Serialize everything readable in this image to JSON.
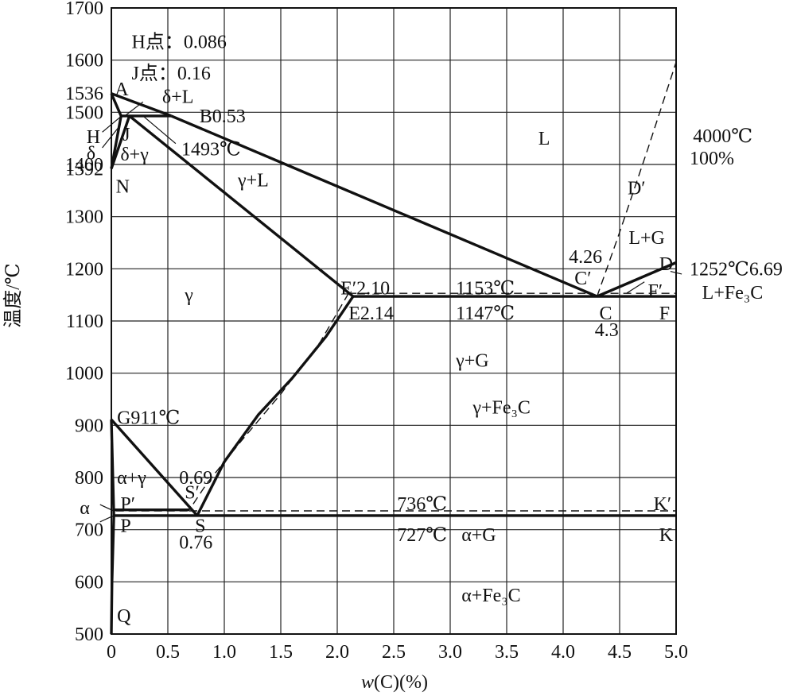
{
  "chart_data": {
    "type": "line",
    "title": "",
    "xlabel_w": "w",
    "xlabel_rest": "(C)(%)",
    "ylabel": "温度/℃",
    "xlim": [
      0,
      5.0
    ],
    "ylim": [
      500,
      1700
    ],
    "grid": true,
    "x_ticks": [
      "0",
      "0.5",
      "1.0",
      "1.5",
      "2.0",
      "2.5",
      "3.0",
      "3.5",
      "4.0",
      "4.5",
      "5.0"
    ],
    "x_tick_values": [
      0,
      0.5,
      1.0,
      1.5,
      2.0,
      2.5,
      3.0,
      3.5,
      4.0,
      4.5,
      5.0
    ],
    "y_ticks": [
      "500",
      "600",
      "700",
      "800",
      "900",
      "1000",
      "1100",
      "1200",
      "1300",
      "1400",
      "1500",
      "1600",
      "1700"
    ],
    "y_tick_values": [
      500,
      600,
      700,
      800,
      900,
      1000,
      1100,
      1200,
      1300,
      1400,
      1500,
      1600,
      1700
    ],
    "extra_y_ticks": [
      {
        "label": "1536",
        "value": 1536
      },
      {
        "label": "1392",
        "value": 1392
      }
    ],
    "solid_lines": [
      {
        "name": "liquidus-AB",
        "points": [
          [
            0,
            1536
          ],
          [
            0.53,
            1493
          ]
        ]
      },
      {
        "name": "liquidus-BC",
        "points": [
          [
            0.53,
            1493
          ],
          [
            4.3,
            1147
          ]
        ]
      },
      {
        "name": "liquidus-CD",
        "points": [
          [
            4.3,
            1147
          ],
          [
            5.0,
            1212
          ]
        ]
      },
      {
        "name": "solidus-AH",
        "points": [
          [
            0,
            1536
          ],
          [
            0.086,
            1493
          ]
        ]
      },
      {
        "name": "peritectic-HJB",
        "points": [
          [
            0.086,
            1493
          ],
          [
            0.53,
            1493
          ]
        ]
      },
      {
        "name": "line-HN",
        "points": [
          [
            0.086,
            1493
          ],
          [
            0,
            1392
          ]
        ]
      },
      {
        "name": "line-JN",
        "points": [
          [
            0.16,
            1493
          ],
          [
            0,
            1392
          ]
        ]
      },
      {
        "name": "solidus-JE",
        "points": [
          [
            0.16,
            1493
          ],
          [
            2.14,
            1147
          ]
        ]
      },
      {
        "name": "eutectic-ECF",
        "points": [
          [
            2.14,
            1147
          ],
          [
            5.0,
            1147
          ]
        ]
      },
      {
        "name": "acm-ES",
        "points": [
          [
            2.14,
            1147
          ],
          [
            1.9,
            1070
          ],
          [
            1.6,
            990
          ],
          [
            1.3,
            920
          ],
          [
            1.0,
            830
          ],
          [
            0.76,
            727
          ]
        ]
      },
      {
        "name": "a3-GS",
        "points": [
          [
            0,
            911
          ],
          [
            0.76,
            727
          ]
        ]
      },
      {
        "name": "line-GP",
        "points": [
          [
            0,
            911
          ],
          [
            0.0218,
            727
          ]
        ]
      },
      {
        "name": "eutectoid-PSK",
        "points": [
          [
            0.0218,
            727
          ],
          [
            5.0,
            727
          ]
        ]
      },
      {
        "name": "solvus-PQ",
        "points": [
          [
            0.0218,
            727
          ],
          [
            0.0057,
            600
          ],
          [
            0,
            500
          ]
        ]
      },
      {
        "name": "line-P-prime",
        "points": [
          [
            0.02,
            738
          ],
          [
            0.5,
            738
          ]
        ]
      },
      {
        "name": "line-P-prime-drop",
        "points": [
          [
            0.5,
            738
          ],
          [
            0.69,
            738
          ]
        ]
      }
    ],
    "dashed_lines": [
      {
        "name": "E-prime-C-prime",
        "points": [
          [
            2.1,
            1153
          ],
          [
            4.26,
            1153
          ]
        ]
      },
      {
        "name": "C-prime-F-prime",
        "points": [
          [
            4.42,
            1153
          ],
          [
            5.0,
            1153
          ]
        ]
      },
      {
        "name": "graphite-liquidus",
        "points": [
          [
            4.3,
            1147
          ],
          [
            4.5,
            1270
          ],
          [
            4.75,
            1430
          ],
          [
            5.0,
            1596
          ]
        ]
      },
      {
        "name": "E-prime-S-prime",
        "points": [
          [
            2.1,
            1153
          ],
          [
            1.85,
            1060
          ],
          [
            1.5,
            960
          ],
          [
            1.15,
            870
          ],
          [
            0.85,
            790
          ],
          [
            0.69,
            738
          ]
        ]
      },
      {
        "name": "S-prime-K-prime",
        "points": [
          [
            0.69,
            736
          ],
          [
            5.0,
            736
          ]
        ]
      },
      {
        "name": "alpha-dash",
        "points": [
          [
            0.04,
            736
          ],
          [
            0.69,
            736
          ]
        ]
      }
    ],
    "labels": [
      {
        "text": "H点：0.086",
        "x": 0.18,
        "y": 1635
      },
      {
        "text": "J点：0.16",
        "x": 0.18,
        "y": 1575
      },
      {
        "text": "A",
        "x": 0.03,
        "y": 1545
      },
      {
        "text": "δ+L",
        "x": 0.45,
        "y": 1530
      },
      {
        "text": "B0.53",
        "x": 0.78,
        "y": 1493
      },
      {
        "text": "H",
        "x": -0.22,
        "y": 1453
      },
      {
        "text": "J",
        "x": 0.1,
        "y": 1458
      },
      {
        "text": "1493℃",
        "x": 0.62,
        "y": 1430
      },
      {
        "text": "δ",
        "x": -0.22,
        "y": 1422
      },
      {
        "text": "δ+γ",
        "x": 0.08,
        "y": 1420
      },
      {
        "text": "N",
        "x": 0.04,
        "y": 1358
      },
      {
        "text": "γ+L",
        "x": 1.12,
        "y": 1370
      },
      {
        "text": "L",
        "x": 3.78,
        "y": 1450
      },
      {
        "text": "4000℃",
        "x": 5.15,
        "y": 1455
      },
      {
        "text": "100%",
        "x": 5.12,
        "y": 1412
      },
      {
        "text": "D′",
        "x": 4.57,
        "y": 1355
      },
      {
        "text": "L+G",
        "x": 4.58,
        "y": 1260
      },
      {
        "text": "4.26",
        "x": 4.05,
        "y": 1223
      },
      {
        "text": "C′",
        "x": 4.1,
        "y": 1182
      },
      {
        "text": "D",
        "x": 4.85,
        "y": 1210
      },
      {
        "text": "1252℃6.69",
        "x": 5.12,
        "y": 1200
      },
      {
        "text": "L+Fe₃C",
        "x": 5.23,
        "y": 1155
      },
      {
        "text": "F′",
        "x": 4.75,
        "y": 1158
      },
      {
        "text": "γ",
        "x": 0.65,
        "y": 1150
      },
      {
        "text": "E′2.10",
        "x": 2.03,
        "y": 1163
      },
      {
        "text": "1153℃",
        "x": 3.05,
        "y": 1163
      },
      {
        "text": "E2.14",
        "x": 2.1,
        "y": 1115
      },
      {
        "text": "1147℃",
        "x": 3.05,
        "y": 1115
      },
      {
        "text": "C",
        "x": 4.32,
        "y": 1115
      },
      {
        "text": "4.3",
        "x": 4.28,
        "y": 1083
      },
      {
        "text": "F",
        "x": 4.85,
        "y": 1115
      },
      {
        "text": "γ+G",
        "x": 3.05,
        "y": 1025
      },
      {
        "text": "γ+Fe₃C",
        "x": 3.2,
        "y": 935
      },
      {
        "text": "G911℃",
        "x": 0.05,
        "y": 915
      },
      {
        "text": "α+γ",
        "x": 0.05,
        "y": 800
      },
      {
        "text": "0.69",
        "x": 0.6,
        "y": 800
      },
      {
        "text": "S′",
        "x": 0.65,
        "y": 772
      },
      {
        "text": "α",
        "x": -0.28,
        "y": 742
      },
      {
        "text": "P′",
        "x": 0.08,
        "y": 750
      },
      {
        "text": "736℃",
        "x": 2.53,
        "y": 750
      },
      {
        "text": "K′",
        "x": 4.8,
        "y": 750
      },
      {
        "text": "P",
        "x": 0.08,
        "y": 708
      },
      {
        "text": "S",
        "x": 0.74,
        "y": 708
      },
      {
        "text": "0.76",
        "x": 0.6,
        "y": 676
      },
      {
        "text": "727℃",
        "x": 2.53,
        "y": 690
      },
      {
        "text": "α+G",
        "x": 3.1,
        "y": 690
      },
      {
        "text": "K",
        "x": 4.85,
        "y": 690
      },
      {
        "text": "α+Fe₃C",
        "x": 3.1,
        "y": 575
      },
      {
        "text": "Q",
        "x": 0.05,
        "y": 535
      }
    ],
    "leader_lines": [
      {
        "points": [
          [
            0.28,
            1520
          ],
          [
            0.12,
            1493
          ]
        ]
      },
      {
        "points": [
          [
            -0.08,
            1462
          ],
          [
            0.09,
            1493
          ]
        ]
      },
      {
        "points": [
          [
            -0.08,
            1432
          ],
          [
            0.06,
            1470
          ]
        ]
      },
      {
        "points": [
          [
            0.57,
            1440
          ],
          [
            0.28,
            1493
          ]
        ]
      },
      {
        "points": [
          [
            4.72,
            1175
          ],
          [
            4.56,
            1153
          ]
        ]
      },
      {
        "points": [
          [
            5.05,
            1190
          ],
          [
            4.95,
            1195
          ]
        ]
      },
      {
        "points": [
          [
            -0.1,
            748
          ],
          [
            0.03,
            735
          ]
        ]
      },
      {
        "points": [
          [
            -0.1,
            715
          ],
          [
            0.03,
            728
          ]
        ]
      }
    ]
  }
}
